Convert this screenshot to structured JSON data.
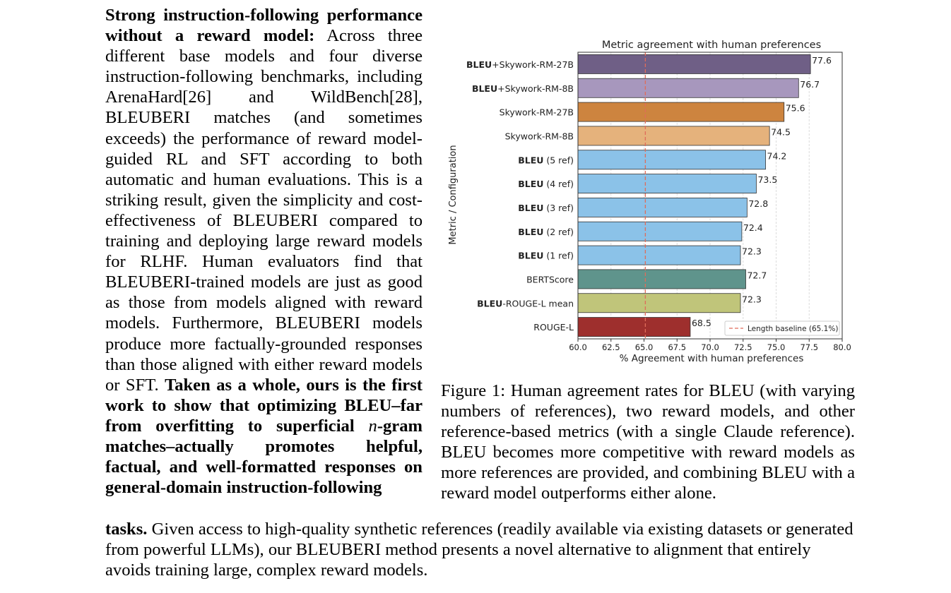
{
  "paragraph": {
    "lead_bold": "Strong instruction-following performance without a reward model:",
    "body": " Across three different base models and four diverse instruction-following benchmarks, including ArenaHard[26] and WildBench[28], BLEUBERI matches (and sometimes exceeds) the performance of reward model-guided RL and SFT according to both automatic and human evaluations. This is a striking result, given the simplicity and cost-effectiveness of BLEUBERI compared to training and deploying large reward models for RLHF. Human evaluators find that BLEUBERI-trained models are just as good as those from models aligned with reward models. Furthermore, BLEUBERI models produce more factually-grounded responses than those aligned with either reward models or SFT. ",
    "bold_part1": "Taken as a whole, ours is the first work to show that optimizing BLEU–far from overfitting to superficial ",
    "bold_n": "n",
    "bold_part2": "-gram matches–actually promotes helpful, factual, and well-formatted responses on general-domain instruction-following",
    "tail_bold": "tasks.",
    "tail_body": " Given access to high-quality synthetic references (readily available via existing datasets or generated from powerful LLMs), our BLEUBERI method presents a novel alternative to alignment that entirely avoids training large, complex reward models."
  },
  "caption": "Figure 1: Human agreement rates for BLEU (with varying numbers of references), two reward models, and other reference-based metrics (with a single Claude reference). BLEU becomes more competitive with reward models as more references are provided, and combining BLEU with a reward model outperforms either alone.",
  "chart_data": {
    "type": "bar",
    "orientation": "horizontal",
    "title": "Metric agreement with human preferences",
    "xlabel": "% Agreement with human preferences",
    "ylabel": "Metric / Configuration",
    "xlim": [
      60,
      80
    ],
    "xticks": [
      "60.0",
      "62.5",
      "65.0",
      "67.5",
      "70.0",
      "72.5",
      "75.0",
      "77.5",
      "80.0"
    ],
    "baseline": {
      "value": 65.1,
      "label": "Length baseline (65.1%)",
      "color": "#e06c5a"
    },
    "legend_position": "lower-right",
    "grid": "vertical",
    "categories": [
      {
        "bold": "BLEU",
        "rest": "+Skywork-RM-27B",
        "value": 77.6,
        "label": "77.6",
        "color": "#6f5f86"
      },
      {
        "bold": "BLEU",
        "rest": "+Skywork-RM-8B",
        "value": 76.7,
        "label": "76.7",
        "color": "#a797bd"
      },
      {
        "bold": "",
        "rest": "Skywork-RM-27B",
        "value": 75.6,
        "label": "75.6",
        "color": "#cd843f"
      },
      {
        "bold": "",
        "rest": "Skywork-RM-8B",
        "value": 74.5,
        "label": "74.5",
        "color": "#e5b27c"
      },
      {
        "bold": "BLEU",
        "rest": " (5 ref)",
        "value": 74.2,
        "label": "74.2",
        "color": "#8bc2e8"
      },
      {
        "bold": "BLEU",
        "rest": " (4 ref)",
        "value": 73.5,
        "label": "73.5",
        "color": "#8bc2e8"
      },
      {
        "bold": "BLEU",
        "rest": " (3 ref)",
        "value": 72.8,
        "label": "72.8",
        "color": "#8bc2e8"
      },
      {
        "bold": "BLEU",
        "rest": " (2 ref)",
        "value": 72.4,
        "label": "72.4",
        "color": "#8bc2e8"
      },
      {
        "bold": "BLEU",
        "rest": " (1 ref)",
        "value": 72.3,
        "label": "72.3",
        "color": "#8bc2e8"
      },
      {
        "bold": "",
        "rest": "BERTScore",
        "value": 72.7,
        "label": "72.7",
        "color": "#5f948c"
      },
      {
        "bold": "BLEU",
        "rest": "-ROUGE-L mean",
        "value": 72.3,
        "label": "72.3",
        "color": "#c0c57a"
      },
      {
        "bold": "",
        "rest": "ROUGE-L",
        "value": 68.5,
        "label": "68.5",
        "color": "#9e2f2d"
      }
    ]
  }
}
